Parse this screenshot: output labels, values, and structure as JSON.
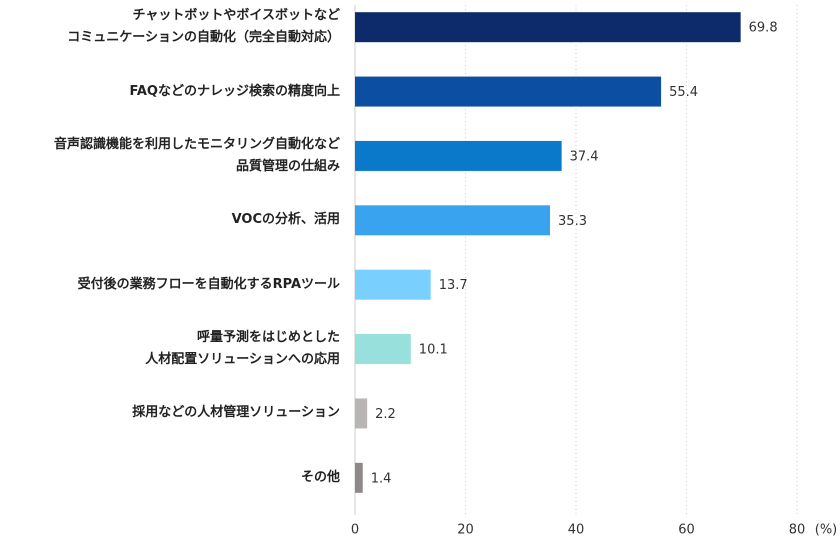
{
  "chart_data": {
    "type": "bar",
    "orientation": "horizontal",
    "categories": [
      "チャットボットやボイスボットなど\nコミュニケーションの自動化（完全自動対応）",
      "FAQなどのナレッジ検索の精度向上",
      "音声認識機能を利用したモニタリング自動化など\n品質管理の仕組み",
      "VOCの分析、活用",
      "受付後の業務フローを自動化するRPAツール",
      "呼量予測をはじめとした\n人材配置ソリューションへの応用",
      "採用などの人材管理ソリューション",
      "その他"
    ],
    "values": [
      69.8,
      55.4,
      37.4,
      35.3,
      13.7,
      10.1,
      2.2,
      1.4
    ],
    "colors": [
      "#0d2a6b",
      "#0b4ea2",
      "#0b79c9",
      "#3aa3f0",
      "#79cffd",
      "#97e0dc",
      "#b9b5b5",
      "#8d8989"
    ],
    "xlim": [
      0,
      80
    ],
    "xticks": [
      0,
      20,
      40,
      60,
      80
    ],
    "x_unit": "(%)",
    "grid": true
  }
}
